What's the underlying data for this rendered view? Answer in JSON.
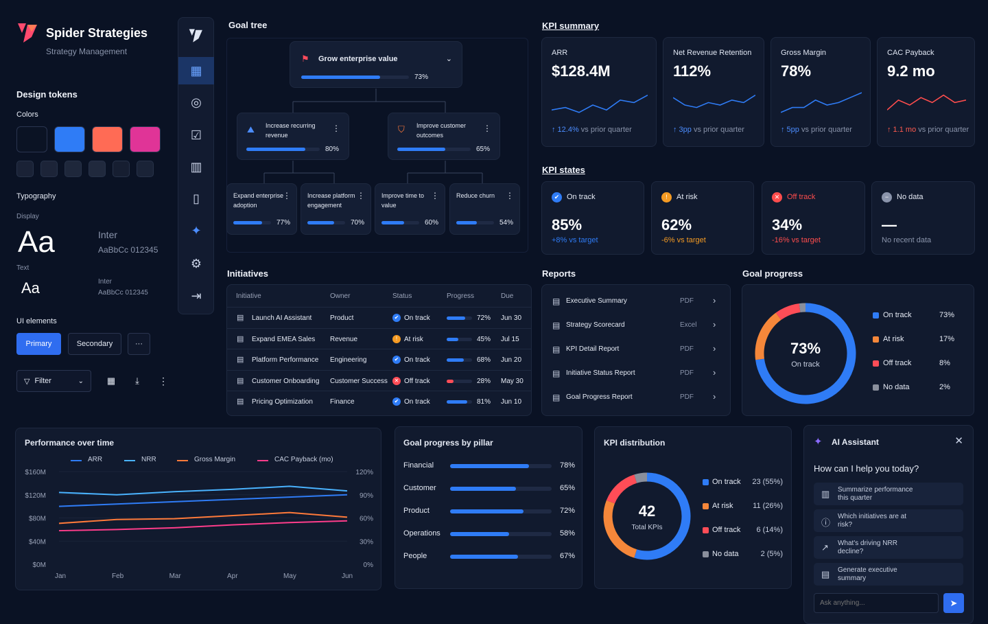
{
  "brand": {
    "name": "Spider Strategies",
    "subtitle": "Strategy Management"
  },
  "tokens": {
    "title": "Design tokens",
    "colors_label": "Colors",
    "swatches": [
      "#0b1324",
      "#2f7cf6",
      "#ff6b55",
      "#e03497"
    ],
    "small_swatches": [
      "#1a2236",
      "#1c2438",
      "#1e273b",
      "#20293d",
      "#161e31",
      "#1a2337"
    ],
    "typography_label": "Typography",
    "display_label": "Display",
    "display_sample": "Aa",
    "display_font": "Inter",
    "display_chars": "AaBbCc 012345",
    "text_label": "Text",
    "text_sample": "Aa",
    "text_font": "Inter",
    "text_chars": "AaBbCc 012345",
    "ui_label": "UI elements",
    "primary": "Primary",
    "secondary": "Secondary",
    "more": "···",
    "filter": "Filter"
  },
  "goal_tree": {
    "title": "Goal tree",
    "root": {
      "label": "Grow enterprise value",
      "progress": 73,
      "pct": "73%"
    },
    "level1": [
      {
        "label": "Increase recurring revenue",
        "progress": 80,
        "pct": "80%"
      },
      {
        "label": "Improve customer outcomes",
        "progress": 65,
        "pct": "65%"
      }
    ],
    "level2": [
      {
        "label": "Expand enterprise adoption",
        "progress": 77,
        "pct": "77%"
      },
      {
        "label": "Increase platform engagement",
        "progress": 70,
        "pct": "70%"
      },
      {
        "label": "Improve time to value",
        "progress": 60,
        "pct": "60%"
      },
      {
        "label": "Reduce churn",
        "progress": 54,
        "pct": "54%"
      }
    ]
  },
  "kpi_summary": {
    "title": "KPI summary",
    "cards": [
      {
        "label": "ARR",
        "value": "$128.4M",
        "delta": "↑ 12.4%",
        "rest": " vs prior quarter",
        "trend": "up"
      },
      {
        "label": "Net Revenue Retention",
        "value": "112%",
        "delta": "↑ 3pp",
        "rest": " vs prior quarter",
        "trend": "up"
      },
      {
        "label": "Gross Margin",
        "value": "78%",
        "delta": "↑ 5pp",
        "rest": " vs prior quarter",
        "trend": "up"
      },
      {
        "label": "CAC Payback",
        "value": "9.2 mo",
        "delta": "↑ 1.1 mo",
        "rest": " vs prior quarter",
        "trend": "bad"
      }
    ]
  },
  "kpi_states": {
    "title": "KPI states",
    "cards": [
      {
        "label": "On track",
        "value": "85%",
        "sub": "+8% vs target",
        "color": "#2f7cf6"
      },
      {
        "label": "At risk",
        "value": "62%",
        "sub": "-6% vs target",
        "color": "#f59b23"
      },
      {
        "label": "Off track",
        "value": "34%",
        "sub": "-16% vs target",
        "color": "#ff4d4d"
      },
      {
        "label": "No data",
        "value": "—",
        "sub": "No recent data",
        "color": "#8a94ab"
      }
    ]
  },
  "initiatives": {
    "title": "Initiatives",
    "headers": [
      "Initiative",
      "Owner",
      "Status",
      "Progress",
      "Due"
    ],
    "rows": [
      {
        "name": "Launch AI Assistant",
        "owner": "Product",
        "status": "On track",
        "progress": 72,
        "pct": "72%",
        "due": "Jun 30"
      },
      {
        "name": "Expand EMEA Sales",
        "owner": "Revenue",
        "status": "At risk",
        "progress": 45,
        "pct": "45%",
        "due": "Jul 15"
      },
      {
        "name": "Platform Performance",
        "owner": "Engineering",
        "status": "On track",
        "progress": 68,
        "pct": "68%",
        "due": "Jun 20"
      },
      {
        "name": "Customer Onboarding",
        "owner": "Customer Success",
        "status": "Off track",
        "progress": 28,
        "pct": "28%",
        "due": "May 30"
      },
      {
        "name": "Pricing Optimization",
        "owner": "Finance",
        "status": "On track",
        "progress": 81,
        "pct": "81%",
        "due": "Jun 10"
      }
    ]
  },
  "reports": {
    "title": "Reports",
    "rows": [
      {
        "name": "Executive Summary",
        "type": "PDF"
      },
      {
        "name": "Strategy Scorecard",
        "type": "Excel"
      },
      {
        "name": "KPI Detail Report",
        "type": "PDF"
      },
      {
        "name": "Initiative Status Report",
        "type": "PDF"
      },
      {
        "name": "Goal Progress Report",
        "type": "PDF"
      }
    ]
  },
  "goal_progress": {
    "title": "Goal progress",
    "center_value": "73%",
    "center_label": "On track",
    "legend": [
      {
        "label": "On track",
        "value": "73%",
        "pct": 73,
        "color": "#2f7cf6"
      },
      {
        "label": "At risk",
        "value": "17%",
        "pct": 17,
        "color": "#f5873a"
      },
      {
        "label": "Off track",
        "value": "8%",
        "pct": 8,
        "color": "#ff4d57"
      },
      {
        "label": "No data",
        "value": "2%",
        "pct": 2,
        "color": "#8a8f9c"
      }
    ]
  },
  "performance": {
    "title": "Performance over time",
    "legend": [
      "ARR",
      "NRR",
      "Gross Margin",
      "CAC Payback (mo)"
    ],
    "colors": [
      "#2f7cf6",
      "#4ab3ff",
      "#ff7a3a",
      "#ff3d8b"
    ],
    "x": [
      "Jan",
      "Feb",
      "Mar",
      "Apr",
      "May",
      "Jun"
    ],
    "yleft": [
      "$160M",
      "$120M",
      "$80M",
      "$40M",
      "$0M"
    ],
    "yright": [
      "120%",
      "90%",
      "60%",
      "30%",
      "0%"
    ]
  },
  "chart_data": [
    {
      "type": "line",
      "title": "Performance over time",
      "x": [
        "Jan",
        "Feb",
        "Mar",
        "Apr",
        "May",
        "Jun"
      ],
      "y_left_range": [
        0,
        160
      ],
      "y_right_range": [
        0,
        120
      ],
      "series": [
        {
          "name": "ARR",
          "axis": "left",
          "values": [
            100,
            104,
            108,
            112,
            116,
            120
          ]
        },
        {
          "name": "NRR",
          "axis": "right",
          "values": [
            93,
            90,
            94,
            97,
            101,
            95
          ]
        },
        {
          "name": "Gross Margin",
          "axis": "right",
          "values": [
            53,
            58,
            59,
            63,
            67,
            61
          ]
        },
        {
          "name": "CAC Payback (mo)",
          "axis": "left",
          "values": [
            58,
            60,
            63,
            68,
            72,
            75
          ]
        }
      ]
    },
    {
      "type": "bar",
      "title": "Goal progress by pillar",
      "categories": [
        "Financial",
        "Customer",
        "Product",
        "Operations",
        "People"
      ],
      "values": [
        78,
        65,
        72,
        58,
        67
      ],
      "labels": [
        "78%",
        "65%",
        "72%",
        "58%",
        "67%"
      ]
    },
    {
      "type": "pie",
      "title": "KPI distribution",
      "center_value": "42",
      "center_label": "Total KPIs",
      "slices": [
        {
          "label": "On track",
          "value": 23,
          "text": "23 (55%)",
          "color": "#2f7cf6"
        },
        {
          "label": "At risk",
          "value": 11,
          "text": "11 (26%)",
          "color": "#f5873a"
        },
        {
          "label": "Off track",
          "value": 6,
          "text": "6 (14%)",
          "color": "#ff4d57"
        },
        {
          "label": "No data",
          "value": 2,
          "text": "2 (5%)",
          "color": "#8a8f9c"
        }
      ]
    }
  ],
  "ai": {
    "title": "AI Assistant",
    "prompt": "How can I help you today?",
    "suggestions": [
      "Summarize performance this quarter",
      "Which initiatives are at risk?",
      "What's driving NRR decline?",
      "Generate executive summary"
    ],
    "placeholder": "Ask anything..."
  }
}
